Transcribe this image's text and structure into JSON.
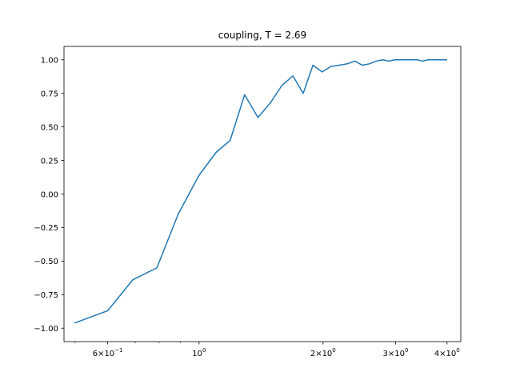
{
  "chart_data": {
    "type": "line",
    "title": "coupling, T = 2.69",
    "xlabel": "",
    "ylabel": "",
    "xscale": "log",
    "xlim": [
      0.47,
      4.32
    ],
    "ylim": [
      -1.1,
      1.1
    ],
    "grid": false,
    "legend": "none",
    "x_ticks": [
      {
        "value": 0.6,
        "base": "6×10",
        "exp": "−1"
      },
      {
        "value": 1,
        "base": "10",
        "exp": "0"
      },
      {
        "value": 2,
        "base": "2×10",
        "exp": "0"
      },
      {
        "value": 3,
        "base": "3×10",
        "exp": "0"
      },
      {
        "value": 4,
        "base": "4×10",
        "exp": "0"
      }
    ],
    "x_minor_ticks": [
      0.5,
      0.7,
      0.8,
      0.9
    ],
    "y_ticks": [
      {
        "value": -1.0,
        "label": "−1.00"
      },
      {
        "value": -0.75,
        "label": "−0.75"
      },
      {
        "value": -0.5,
        "label": "−0.50"
      },
      {
        "value": -0.25,
        "label": "−0.25"
      },
      {
        "value": 0.0,
        "label": "0.00"
      },
      {
        "value": 0.25,
        "label": "0.25"
      },
      {
        "value": 0.5,
        "label": "0.50"
      },
      {
        "value": 0.75,
        "label": "0.75"
      },
      {
        "value": 1.0,
        "label": "1.00"
      }
    ],
    "series": [
      {
        "color": "#1f77b4",
        "x": [
          0.5,
          0.6,
          0.69,
          0.79,
          0.89,
          1.0,
          1.1,
          1.19,
          1.29,
          1.39,
          1.49,
          1.59,
          1.69,
          1.79,
          1.89,
          1.99,
          2.09,
          2.19,
          2.29,
          2.39,
          2.49,
          2.59,
          2.69,
          2.79,
          2.89,
          2.99,
          3.09,
          3.19,
          3.29,
          3.39,
          3.49,
          3.59,
          3.69,
          3.79,
          3.89,
          3.99
        ],
        "y": [
          -0.96,
          -0.87,
          -0.64,
          -0.55,
          -0.15,
          0.14,
          0.31,
          0.4,
          0.74,
          0.57,
          0.68,
          0.81,
          0.88,
          0.75,
          0.96,
          0.91,
          0.95,
          0.96,
          0.97,
          0.99,
          0.96,
          0.97,
          0.99,
          1.0,
          0.99,
          1.0,
          1.0,
          1.0,
          1.0,
          1.0,
          0.99,
          1.0,
          1.0,
          1.0,
          1.0,
          1.0
        ]
      }
    ]
  }
}
